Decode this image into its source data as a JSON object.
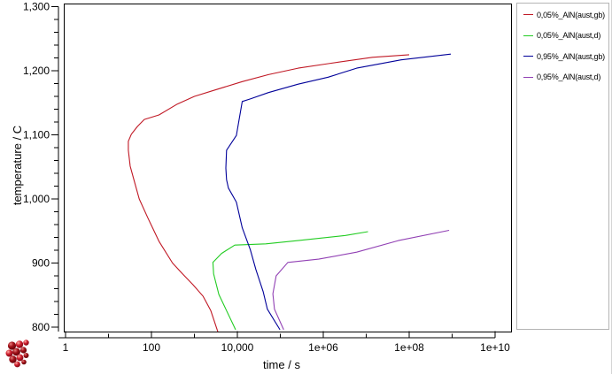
{
  "window": {
    "background": "#ffffff"
  },
  "chart_data": {
    "type": "line",
    "title": "",
    "xlabel": "time / s",
    "ylabel": "temperature / C",
    "x_scale": "log",
    "xlim": [
      1,
      10000000000
    ],
    "ylim": [
      800,
      1300
    ],
    "grid": false,
    "legend_position": "right-outside",
    "x_major_ticks": [
      {
        "log": 0,
        "label": "1"
      },
      {
        "log": 2,
        "label": "100"
      },
      {
        "log": 4,
        "label": "10,000"
      },
      {
        "log": 6,
        "label": "1e+06"
      },
      {
        "log": 8,
        "label": "1e+08"
      },
      {
        "log": 10,
        "label": "1e+10"
      }
    ],
    "x_minor_ticks_log": [
      1,
      3,
      5,
      7,
      9
    ],
    "y_major_ticks": [
      {
        "value": 800,
        "label": "800"
      },
      {
        "value": 900,
        "label": "900"
      },
      {
        "value": 1000,
        "label": "1,000"
      },
      {
        "value": 1100,
        "label": "1,100"
      },
      {
        "value": 1200,
        "label": "1,200"
      },
      {
        "value": 1300,
        "label": "1,300"
      }
    ],
    "y_minor_step": 20,
    "series": [
      {
        "name": "0,05%_AlN(aust,gb)",
        "color": "#c01824",
        "points": [
          [
            3500,
            793
          ],
          [
            2400,
            826
          ],
          [
            1600,
            848
          ],
          [
            930,
            866
          ],
          [
            530,
            883
          ],
          [
            310,
            900
          ],
          [
            150,
            934
          ],
          [
            83,
            970
          ],
          [
            52,
            1000
          ],
          [
            39,
            1030
          ],
          [
            32,
            1051
          ],
          [
            29,
            1076
          ],
          [
            29,
            1090
          ],
          [
            34,
            1101
          ],
          [
            47,
            1113
          ],
          [
            68,
            1124
          ],
          [
            150,
            1131
          ],
          [
            400,
            1148
          ],
          [
            1000,
            1160
          ],
          [
            3000,
            1170
          ],
          [
            13000,
            1183
          ],
          [
            53000,
            1194
          ],
          [
            260000,
            1204
          ],
          [
            1300000,
            1211
          ],
          [
            14000000,
            1221
          ],
          [
            100000000,
            1225
          ]
        ]
      },
      {
        "name": "0,05%_AlN(aust,d)",
        "color": "#22cc22",
        "points": [
          [
            9100,
            796
          ],
          [
            5400,
            828
          ],
          [
            3700,
            851
          ],
          [
            2800,
            883
          ],
          [
            2700,
            901
          ],
          [
            4300,
            915
          ],
          [
            8700,
            928
          ],
          [
            46000,
            930
          ],
          [
            260000,
            935
          ],
          [
            3300000,
            943
          ],
          [
            11000000,
            949
          ]
        ]
      },
      {
        "name": "0,95%_AlN(aust,gb)",
        "color": "#000099",
        "points": [
          [
            98000,
            796
          ],
          [
            50000,
            828
          ],
          [
            40000,
            855
          ],
          [
            27000,
            890
          ],
          [
            20000,
            921
          ],
          [
            13000,
            955
          ],
          [
            9500,
            995
          ],
          [
            6200,
            1017
          ],
          [
            5600,
            1030
          ],
          [
            5400,
            1048
          ],
          [
            5600,
            1076
          ],
          [
            7200,
            1087
          ],
          [
            9500,
            1099
          ],
          [
            13000,
            1152
          ],
          [
            20000,
            1156
          ],
          [
            53000,
            1166
          ],
          [
            260000,
            1179
          ],
          [
            1300000,
            1190
          ],
          [
            6000000,
            1204
          ],
          [
            65000000,
            1217
          ],
          [
            930000000,
            1226
          ]
        ]
      },
      {
        "name": "0,95%_AlN(aust,d)",
        "color": "#9140b4",
        "points": [
          [
            120000,
            796
          ],
          [
            73000,
            828
          ],
          [
            67000,
            852
          ],
          [
            80000,
            880
          ],
          [
            150000,
            901
          ],
          [
            780000,
            906
          ],
          [
            6000000,
            917
          ],
          [
            56000000,
            935
          ],
          [
            850000000,
            951
          ]
        ]
      }
    ]
  },
  "logo": {
    "icon": "matcalc-spheres-logo"
  }
}
